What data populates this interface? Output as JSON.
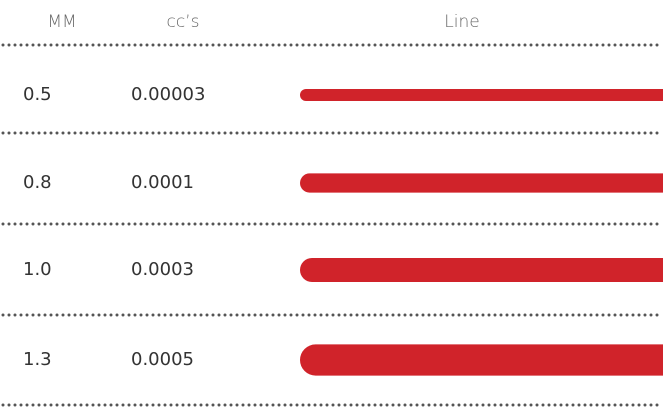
{
  "table": {
    "header": [
      "MM",
      "cc’s",
      "Line"
    ],
    "rows": [
      [
        "0.5",
        "0.00003"
      ],
      [
        "0.8",
        "0.0001"
      ],
      [
        "1.0",
        "0.0003"
      ],
      [
        "1.3",
        "0.0005"
      ]
    ],
    "line_color": "#d0232a"
  }
}
